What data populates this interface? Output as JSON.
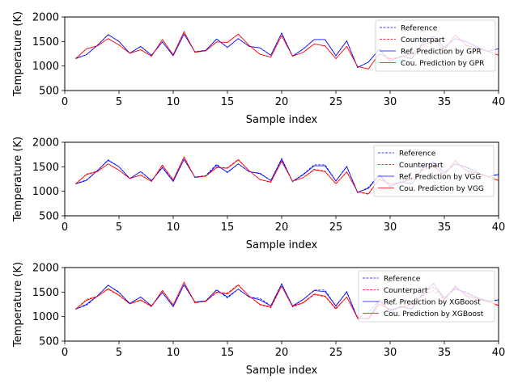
{
  "chart_data": [
    {
      "type": "line",
      "xlabel": "Sample index",
      "ylabel": "Temperature (K)",
      "xlim": [
        0,
        40
      ],
      "ylim": [
        500,
        2000
      ],
      "xticks": [
        0,
        5,
        10,
        15,
        20,
        25,
        30,
        35,
        40
      ],
      "yticks": [
        500,
        1000,
        1500,
        2000
      ],
      "legend_position": "top-right",
      "x": [
        1,
        2,
        3,
        4,
        5,
        6,
        7,
        8,
        9,
        10,
        11,
        12,
        13,
        14,
        15,
        16,
        17,
        18,
        19,
        20,
        21,
        22,
        23,
        24,
        25,
        26,
        27,
        28,
        29,
        30,
        31,
        32,
        33,
        34,
        35,
        36,
        37,
        38,
        39,
        40
      ],
      "series": [
        {
          "name": "Reference",
          "color": "#0000ff",
          "dash": "dashed",
          "values": [
            1160,
            1230,
            1420,
            1640,
            1500,
            1260,
            1400,
            1220,
            1490,
            1210,
            1650,
            1290,
            1320,
            1550,
            1380,
            1560,
            1400,
            1370,
            1220,
            1670,
            1200,
            1350,
            1540,
            1540,
            1210,
            1510,
            970,
            1080,
            1340,
            1100,
            1200,
            1150,
            1480,
            1600,
            1380,
            1560,
            1500,
            1390,
            1300,
            1350
          ]
        },
        {
          "name": "Counterpart",
          "color": "#ff0000",
          "dash": "dashed",
          "values": [
            1150,
            1350,
            1410,
            1560,
            1430,
            1260,
            1330,
            1200,
            1540,
            1230,
            1700,
            1280,
            1310,
            1490,
            1480,
            1650,
            1420,
            1240,
            1180,
            1620,
            1200,
            1280,
            1450,
            1410,
            1150,
            1400,
            990,
            940,
            1250,
            1150,
            1180,
            1250,
            1430,
            1530,
            1330,
            1630,
            1420,
            1370,
            1300,
            1220
          ]
        },
        {
          "name": "Ref. Prediction by GPR",
          "color": "#0000ff",
          "dash": "solid",
          "values": [
            1150,
            1230,
            1420,
            1640,
            1500,
            1260,
            1400,
            1220,
            1490,
            1210,
            1650,
            1290,
            1320,
            1550,
            1380,
            1560,
            1400,
            1370,
            1220,
            1670,
            1200,
            1350,
            1540,
            1540,
            1210,
            1510,
            970,
            1080,
            1340,
            1100,
            1200,
            1150,
            1480,
            1600,
            1380,
            1560,
            1500,
            1390,
            1300,
            1350
          ]
        },
        {
          "name": "Cou. Prediction by GPR",
          "color": "#ff0000",
          "dash": "solid",
          "values": [
            1150,
            1350,
            1410,
            1560,
            1430,
            1260,
            1330,
            1200,
            1540,
            1230,
            1700,
            1280,
            1310,
            1490,
            1480,
            1650,
            1420,
            1240,
            1180,
            1620,
            1200,
            1280,
            1450,
            1410,
            1150,
            1400,
            990,
            940,
            1250,
            1150,
            1180,
            1250,
            1430,
            1530,
            1330,
            1630,
            1420,
            1370,
            1300,
            1220
          ]
        }
      ]
    },
    {
      "type": "line",
      "xlabel": "Sample index",
      "ylabel": "Temperature (K)",
      "xlim": [
        0,
        40
      ],
      "ylim": [
        500,
        2000
      ],
      "xticks": [
        0,
        5,
        10,
        15,
        20,
        25,
        30,
        35,
        40
      ],
      "yticks": [
        500,
        1000,
        1500,
        2000
      ],
      "legend_position": "top-right",
      "x": [
        1,
        2,
        3,
        4,
        5,
        6,
        7,
        8,
        9,
        10,
        11,
        12,
        13,
        14,
        15,
        16,
        17,
        18,
        19,
        20,
        21,
        22,
        23,
        24,
        25,
        26,
        27,
        28,
        29,
        30,
        31,
        32,
        33,
        34,
        35,
        36,
        37,
        38,
        39,
        40
      ],
      "series": [
        {
          "name": "Reference",
          "color": "#0000ff",
          "dash": "dashed",
          "values": [
            1160,
            1230,
            1420,
            1640,
            1500,
            1260,
            1400,
            1220,
            1490,
            1210,
            1650,
            1290,
            1320,
            1550,
            1380,
            1560,
            1400,
            1370,
            1220,
            1670,
            1200,
            1350,
            1540,
            1540,
            1210,
            1510,
            970,
            1080,
            1340,
            1100,
            1200,
            1150,
            1480,
            1600,
            1380,
            1560,
            1500,
            1390,
            1300,
            1350
          ]
        },
        {
          "name": "Counterpart",
          "color": "#ff0000",
          "dash": "dashed",
          "values": [
            1150,
            1350,
            1410,
            1560,
            1430,
            1260,
            1330,
            1200,
            1540,
            1230,
            1700,
            1280,
            1310,
            1490,
            1480,
            1650,
            1420,
            1240,
            1180,
            1620,
            1200,
            1280,
            1450,
            1410,
            1150,
            1400,
            990,
            940,
            1250,
            1150,
            1180,
            1250,
            1430,
            1530,
            1330,
            1630,
            1420,
            1370,
            1300,
            1220
          ]
        },
        {
          "name": "Ref. Prediction by VGG",
          "color": "#0000ff",
          "dash": "solid",
          "values": [
            1150,
            1220,
            1420,
            1630,
            1500,
            1260,
            1400,
            1220,
            1480,
            1200,
            1650,
            1290,
            1310,
            1530,
            1390,
            1560,
            1400,
            1360,
            1220,
            1650,
            1200,
            1340,
            1520,
            1520,
            1210,
            1500,
            980,
            1060,
            1330,
            1100,
            1190,
            1150,
            1470,
            1590,
            1380,
            1560,
            1490,
            1390,
            1300,
            1340
          ]
        },
        {
          "name": "Cou. Prediction by VGG",
          "color": "#ff0000",
          "dash": "solid",
          "values": [
            1150,
            1340,
            1400,
            1560,
            1430,
            1260,
            1330,
            1200,
            1530,
            1230,
            1700,
            1280,
            1310,
            1480,
            1470,
            1640,
            1420,
            1240,
            1190,
            1610,
            1210,
            1280,
            1440,
            1400,
            1160,
            1390,
            990,
            950,
            1250,
            1150,
            1180,
            1250,
            1430,
            1520,
            1330,
            1620,
            1420,
            1370,
            1300,
            1220
          ]
        }
      ]
    },
    {
      "type": "line",
      "xlabel": "Sample index",
      "ylabel": "Temperature (K)",
      "xlim": [
        0,
        40
      ],
      "ylim": [
        500,
        2000
      ],
      "xticks": [
        0,
        5,
        10,
        15,
        20,
        25,
        30,
        35,
        40
      ],
      "yticks": [
        500,
        1000,
        1500,
        2000
      ],
      "legend_position": "top-right",
      "x": [
        1,
        2,
        3,
        4,
        5,
        6,
        7,
        8,
        9,
        10,
        11,
        12,
        13,
        14,
        15,
        16,
        17,
        18,
        19,
        20,
        21,
        22,
        23,
        24,
        25,
        26,
        27,
        28,
        29,
        30,
        31,
        32,
        33,
        34,
        35,
        36,
        37,
        38,
        39,
        40
      ],
      "series": [
        {
          "name": "Reference",
          "color": "#0000ff",
          "dash": "dashed",
          "values": [
            1160,
            1230,
            1420,
            1640,
            1500,
            1260,
            1400,
            1220,
            1490,
            1210,
            1650,
            1290,
            1320,
            1550,
            1380,
            1560,
            1400,
            1370,
            1220,
            1670,
            1200,
            1350,
            1540,
            1540,
            1210,
            1510,
            970,
            1080,
            1340,
            1100,
            1200,
            1150,
            1480,
            1600,
            1380,
            1560,
            1500,
            1390,
            1300,
            1350
          ]
        },
        {
          "name": "Counterpart",
          "color": "#ff0000",
          "dash": "dashed",
          "values": [
            1150,
            1350,
            1410,
            1560,
            1430,
            1260,
            1330,
            1200,
            1540,
            1230,
            1700,
            1280,
            1310,
            1490,
            1480,
            1650,
            1420,
            1240,
            1180,
            1620,
            1200,
            1280,
            1450,
            1410,
            1150,
            1400,
            990,
            940,
            1250,
            1150,
            1180,
            1250,
            1430,
            1530,
            1330,
            1630,
            1420,
            1370,
            1300,
            1220
          ]
        },
        {
          "name": "Ref. Prediction by XGBoost",
          "color": "#0000ff",
          "dash": "solid",
          "values": [
            1150,
            1250,
            1420,
            1640,
            1490,
            1270,
            1400,
            1220,
            1490,
            1200,
            1650,
            1300,
            1320,
            1540,
            1400,
            1560,
            1400,
            1340,
            1220,
            1660,
            1220,
            1350,
            1530,
            1510,
            1220,
            1500,
            960,
            960,
            1320,
            1120,
            1210,
            1160,
            1470,
            1670,
            1380,
            1580,
            1480,
            1390,
            1320,
            1330
          ]
        },
        {
          "name": "Cou. Prediction by XGBoost",
          "color": "#ff0000",
          "dash": "solid",
          "values": [
            1150,
            1330,
            1410,
            1570,
            1440,
            1260,
            1340,
            1210,
            1530,
            1240,
            1700,
            1290,
            1310,
            1500,
            1460,
            1640,
            1420,
            1250,
            1200,
            1620,
            1210,
            1290,
            1460,
            1420,
            1170,
            1400,
            970,
            960,
            1260,
            1150,
            1190,
            1250,
            1430,
            1680,
            1340,
            1620,
            1430,
            1370,
            1310,
            1230
          ]
        }
      ]
    }
  ]
}
